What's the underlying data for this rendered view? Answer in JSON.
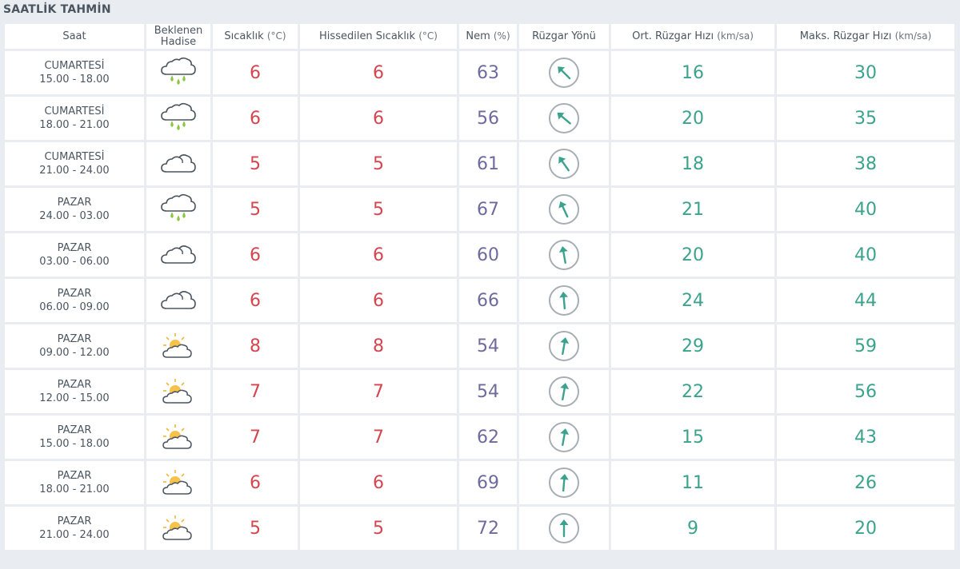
{
  "title": "SAATLİK TAHMİN",
  "headers": {
    "time": "Saat",
    "event_1": "Beklenen",
    "event_2": "Hadise",
    "temp": "Sıcaklık",
    "temp_unit": "(°C)",
    "feels": "Hissedilen Sıcaklık",
    "feels_unit": "(°C)",
    "hum": "Nem",
    "hum_unit": "(%)",
    "dir": "Rüzgar Yönü",
    "avg": "Ort. Rüzgar Hızı",
    "avg_unit": "(km/sa)",
    "max": "Maks. Rüzgar Hızı",
    "max_unit": "(km/sa)"
  },
  "colors": {
    "temperature": "#d4454f",
    "humidity": "#6f6a9e",
    "wind": "#3ba38d"
  },
  "rows": [
    {
      "day": "CUMARTESİ",
      "hours": "15.00 - 18.00",
      "icon": "rain-cloud-icon",
      "temp": "6",
      "feels": "6",
      "hum": "63",
      "dir_deg": 135,
      "avg": "16",
      "max": "30"
    },
    {
      "day": "CUMARTESİ",
      "hours": "18.00 - 21.00",
      "icon": "rain-cloud-icon",
      "temp": "6",
      "feels": "6",
      "hum": "56",
      "dir_deg": 130,
      "avg": "20",
      "max": "35"
    },
    {
      "day": "CUMARTESİ",
      "hours": "21.00 - 24.00",
      "icon": "cloud-icon",
      "temp": "5",
      "feels": "5",
      "hum": "61",
      "dir_deg": 145,
      "avg": "18",
      "max": "38"
    },
    {
      "day": "PAZAR",
      "hours": "24.00 - 03.00",
      "icon": "rain-cloud-icon",
      "temp": "5",
      "feels": "5",
      "hum": "67",
      "dir_deg": 155,
      "avg": "21",
      "max": "40"
    },
    {
      "day": "PAZAR",
      "hours": "03.00 - 06.00",
      "icon": "cloud-icon",
      "temp": "6",
      "feels": "6",
      "hum": "60",
      "dir_deg": 170,
      "avg": "20",
      "max": "40"
    },
    {
      "day": "PAZAR",
      "hours": "06.00 - 09.00",
      "icon": "cloud-icon",
      "temp": "6",
      "feels": "6",
      "hum": "66",
      "dir_deg": 175,
      "avg": "24",
      "max": "44"
    },
    {
      "day": "PAZAR",
      "hours": "09.00 - 12.00",
      "icon": "partly-sunny-icon",
      "temp": "8",
      "feels": "8",
      "hum": "54",
      "dir_deg": 190,
      "avg": "29",
      "max": "59"
    },
    {
      "day": "PAZAR",
      "hours": "12.00 - 15.00",
      "icon": "partly-sunny-icon",
      "temp": "7",
      "feels": "7",
      "hum": "54",
      "dir_deg": 190,
      "avg": "22",
      "max": "56"
    },
    {
      "day": "PAZAR",
      "hours": "15.00 - 18.00",
      "icon": "partly-sunny-icon",
      "temp": "7",
      "feels": "7",
      "hum": "62",
      "dir_deg": 190,
      "avg": "15",
      "max": "43"
    },
    {
      "day": "PAZAR",
      "hours": "18.00 - 21.00",
      "icon": "partly-sunny-icon",
      "temp": "6",
      "feels": "6",
      "hum": "69",
      "dir_deg": 185,
      "avg": "11",
      "max": "26"
    },
    {
      "day": "PAZAR",
      "hours": "21.00 - 24.00",
      "icon": "partly-sunny-icon",
      "temp": "5",
      "feels": "5",
      "hum": "72",
      "dir_deg": 180,
      "avg": "9",
      "max": "20"
    }
  ]
}
